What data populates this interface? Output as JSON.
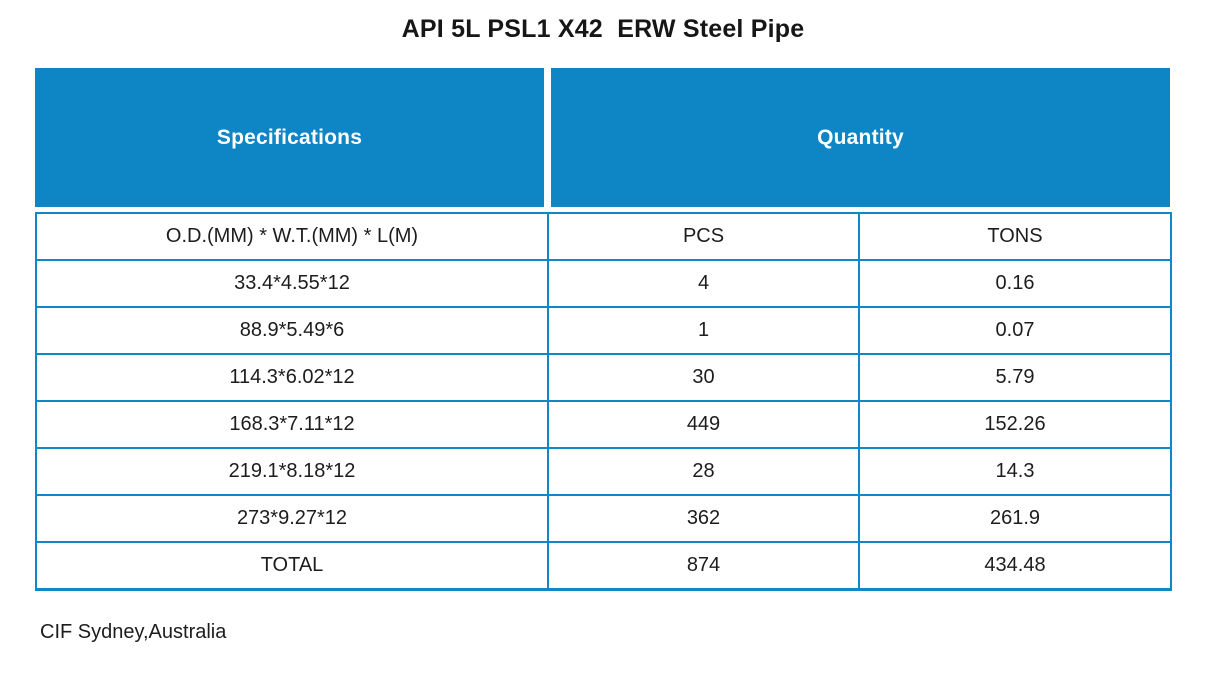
{
  "title": "API 5L PSL1 X42  ERW Steel Pipe",
  "table": {
    "header": {
      "specifications": "Specifications",
      "quantity": "Quantity"
    },
    "subheader": {
      "spec": "O.D.(MM) * W.T.(MM) * L(M)",
      "pcs": "PCS",
      "tons": "TONS"
    },
    "rows": [
      {
        "spec": "33.4*4.55*12",
        "pcs": "4",
        "tons": "0.16"
      },
      {
        "spec": "88.9*5.49*6",
        "pcs": "1",
        "tons": "0.07"
      },
      {
        "spec": "114.3*6.02*12",
        "pcs": "30",
        "tons": "5.79"
      },
      {
        "spec": "168.3*7.11*12",
        "pcs": "449",
        "tons": "152.26"
      },
      {
        "spec": "219.1*8.18*12",
        "pcs": "28",
        "tons": "14.3"
      },
      {
        "spec": "273*9.27*12",
        "pcs": "362",
        "tons": "261.9"
      }
    ],
    "total": {
      "label": "TOTAL",
      "pcs": "874",
      "tons": "434.48"
    }
  },
  "footer": "CIF Sydney,Australia",
  "colors": {
    "header_fill_blue": "#0E86C5",
    "border_blue": "#1287C6",
    "header_text": "#FFFFFF",
    "body_text": "#1D1D1D",
    "title_text": "#161616",
    "background": "#FFFFFF"
  },
  "chart_data": {
    "type": "table",
    "title": "API 5L PSL1 X42  ERW Steel Pipe",
    "columns": [
      "O.D.(MM) * W.T.(MM) * L(M)",
      "PCS",
      "TONS"
    ],
    "rows": [
      [
        "33.4*4.55*12",
        4,
        0.16
      ],
      [
        "88.9*5.49*6",
        1,
        0.07
      ],
      [
        "114.3*6.02*12",
        30,
        5.79
      ],
      [
        "168.3*7.11*12",
        449,
        152.26
      ],
      [
        "219.1*8.18*12",
        28,
        14.3
      ],
      [
        "273*9.27*12",
        362,
        261.9
      ],
      [
        "TOTAL",
        874,
        434.48
      ]
    ],
    "notes": "CIF Sydney,Australia"
  }
}
